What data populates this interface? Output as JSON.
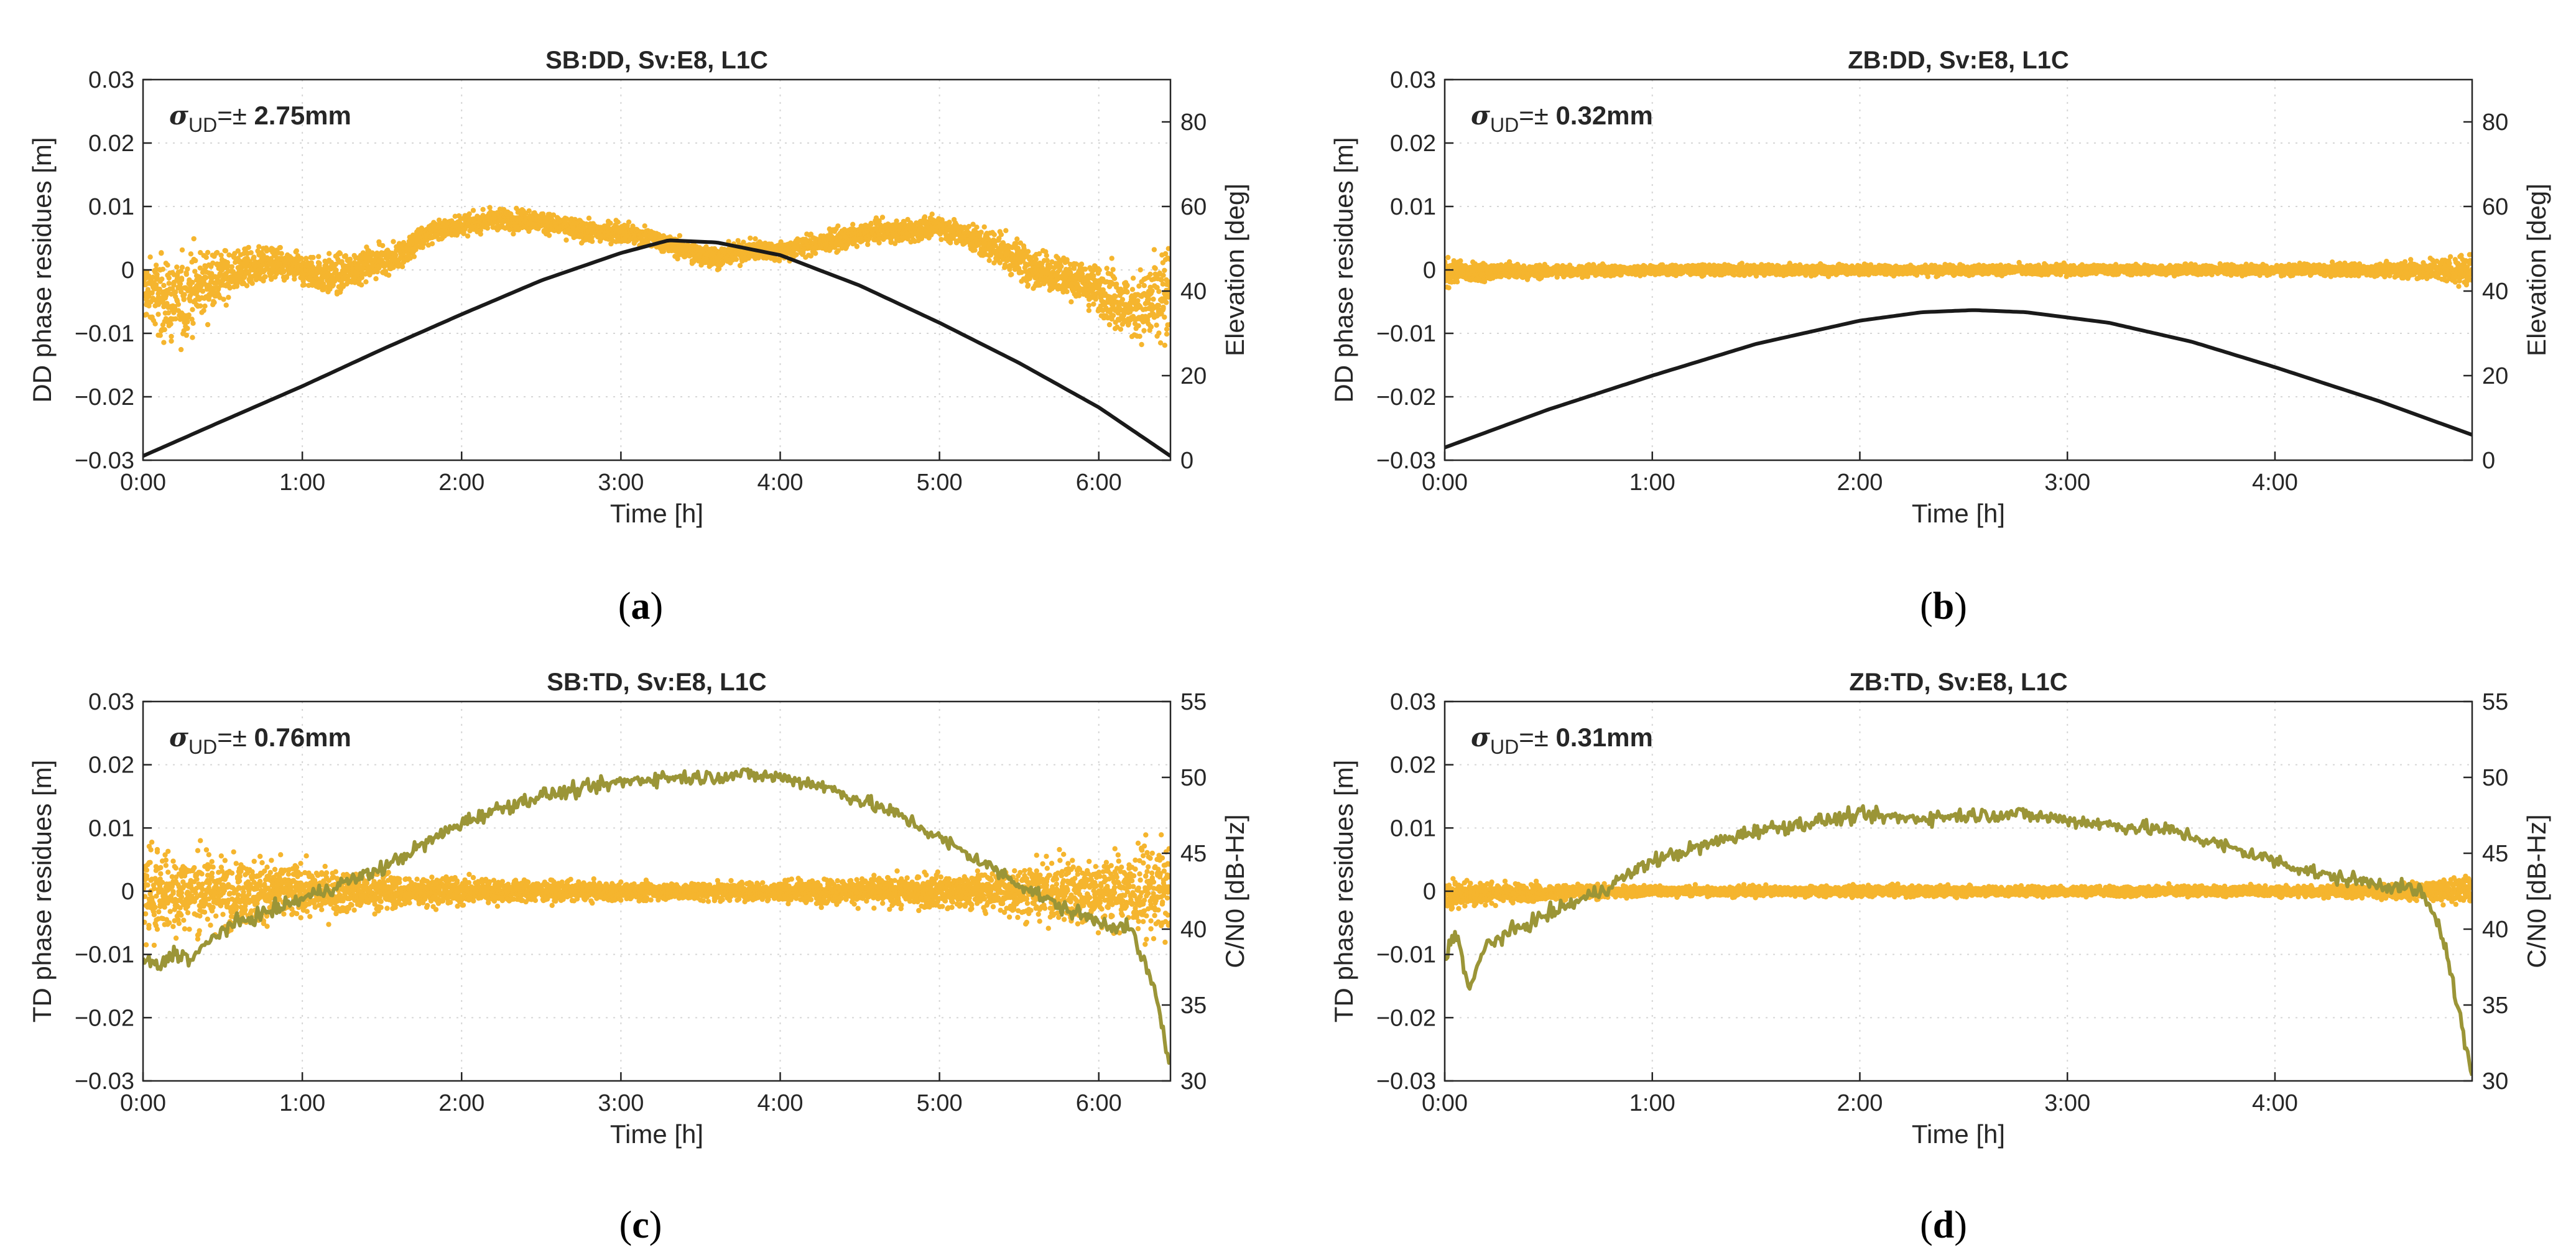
{
  "figure": {
    "colors": {
      "residues": "#F5B52E",
      "elevation": "#1a1a1a",
      "cn0": "#9B9537"
    },
    "panels": [
      {
        "id": "a",
        "title": "SB:DD, Sv:E8, L1C",
        "caption_letter": "a",
        "stat_sub": "UD",
        "stat_value": "2.75mm",
        "ylabel_left": "DD phase residues [m]",
        "ylabel_right": "Elevation [deg]",
        "xlabel": "Time [h]",
        "x_ticks": [
          "0:00",
          "1:00",
          "2:00",
          "3:00",
          "4:00",
          "5:00",
          "6:00"
        ],
        "y_ticks_left": [
          "−0.03",
          "−0.02",
          "−0.01",
          "0",
          "0.01",
          "0.02",
          "0.03"
        ],
        "y_ticks_right": [
          "0",
          "20",
          "40",
          "60",
          "80"
        ]
      },
      {
        "id": "b",
        "title": "ZB:DD, Sv:E8, L1C",
        "caption_letter": "b",
        "stat_sub": "UD",
        "stat_value": "0.32mm",
        "ylabel_left": "DD phase residues [m]",
        "ylabel_right": "Elevation [deg]",
        "xlabel": "Time [h]",
        "x_ticks": [
          "0:00",
          "1:00",
          "2:00",
          "3:00",
          "4:00"
        ],
        "y_ticks_left": [
          "−0.03",
          "−0.02",
          "−0.01",
          "0",
          "0.01",
          "0.02",
          "0.03"
        ],
        "y_ticks_right": [
          "0",
          "20",
          "40",
          "60",
          "80"
        ]
      },
      {
        "id": "c",
        "title": "SB:TD, Sv:E8, L1C",
        "caption_letter": "c",
        "stat_sub": "UD",
        "stat_value": "0.76mm",
        "ylabel_left": "TD phase residues [m]",
        "ylabel_right": "C/N0 [dB-Hz]",
        "xlabel": "Time [h]",
        "x_ticks": [
          "0:00",
          "1:00",
          "2:00",
          "3:00",
          "4:00",
          "5:00",
          "6:00"
        ],
        "y_ticks_left": [
          "−0.03",
          "−0.02",
          "−0.01",
          "0",
          "0.01",
          "0.02",
          "0.03"
        ],
        "y_ticks_right": [
          "30",
          "35",
          "40",
          "45",
          "50",
          "55"
        ]
      },
      {
        "id": "d",
        "title": "ZB:TD, Sv:E8, L1C",
        "caption_letter": "d",
        "stat_sub": "UD",
        "stat_value": "0.31mm",
        "ylabel_left": "TD phase residues [m]",
        "ylabel_right": "C/N0 [dB-Hz]",
        "xlabel": "Time [h]",
        "x_ticks": [
          "0:00",
          "1:00",
          "2:00",
          "3:00",
          "4:00"
        ],
        "y_ticks_left": [
          "−0.03",
          "−0.02",
          "−0.01",
          "0",
          "0.01",
          "0.02",
          "0.03"
        ],
        "y_ticks_right": [
          "30",
          "35",
          "40",
          "45",
          "50",
          "55"
        ]
      }
    ]
  },
  "chart_data": [
    {
      "type": "scatter",
      "title": "SB:DD, Sv:E8, L1C",
      "xlabel": "Time [h]",
      "ylabel": "DD phase residues [m]",
      "ylabel_right": "Elevation [deg]",
      "xlim": [
        0,
        6.45
      ],
      "ylim": [
        -0.03,
        0.03
      ],
      "ylim_right": [
        0,
        90
      ],
      "grid": true,
      "annotation": "σUD=± 2.75mm",
      "series": [
        {
          "kind": "scatter",
          "axis": "left",
          "color": "#F5B52E",
          "x": [
            0.0,
            0.2,
            0.4,
            0.6,
            0.8,
            1.0,
            1.2,
            1.4,
            1.6,
            1.8,
            2.0,
            2.2,
            2.4,
            2.6,
            2.8,
            3.0,
            3.2,
            3.4,
            3.6,
            3.8,
            4.0,
            4.2,
            4.4,
            4.6,
            4.8,
            5.0,
            5.2,
            5.4,
            5.6,
            5.8,
            6.0,
            6.2,
            6.4
          ],
          "center": [
            -0.003,
            -0.005,
            -0.002,
            0.0,
            0.001,
            0.0,
            -0.001,
            0.001,
            0.002,
            0.006,
            0.007,
            0.008,
            0.008,
            0.007,
            0.006,
            0.006,
            0.005,
            0.003,
            0.002,
            0.003,
            0.003,
            0.004,
            0.005,
            0.006,
            0.006,
            0.007,
            0.005,
            0.003,
            0.0,
            -0.001,
            -0.003,
            -0.006,
            -0.005
          ],
          "spread": [
            0.006,
            0.009,
            0.006,
            0.004,
            0.003,
            0.003,
            0.004,
            0.003,
            0.003,
            0.002,
            0.002,
            0.002,
            0.002,
            0.002,
            0.002,
            0.002,
            0.002,
            0.002,
            0.002,
            0.002,
            0.002,
            0.002,
            0.002,
            0.002,
            0.002,
            0.002,
            0.003,
            0.004,
            0.004,
            0.004,
            0.005,
            0.006,
            0.01
          ]
        },
        {
          "kind": "line",
          "axis": "right",
          "color": "#1a1a1a",
          "x": [
            0.0,
            0.5,
            1.0,
            1.5,
            2.0,
            2.5,
            3.0,
            3.3,
            3.6,
            4.0,
            4.5,
            5.0,
            5.5,
            6.0,
            6.45
          ],
          "y": [
            1,
            9.3,
            17.5,
            26.2,
            34.5,
            42.5,
            49,
            52,
            51.5,
            48.5,
            41.3,
            32.5,
            23,
            12.5,
            1
          ]
        }
      ]
    },
    {
      "type": "scatter",
      "title": "ZB:DD, Sv:E8, L1C",
      "xlabel": "Time [h]",
      "ylabel": "DD phase residues [m]",
      "ylabel_right": "Elevation [deg]",
      "xlim": [
        0,
        4.95
      ],
      "ylim": [
        -0.03,
        0.03
      ],
      "ylim_right": [
        0,
        90
      ],
      "grid": true,
      "annotation": "σUD=± 0.32mm",
      "series": [
        {
          "kind": "scatter",
          "axis": "left",
          "color": "#F5B52E",
          "x": [
            0.0,
            0.25,
            0.5,
            0.75,
            1.0,
            1.25,
            1.5,
            1.75,
            2.0,
            2.25,
            2.5,
            2.75,
            3.0,
            3.25,
            3.5,
            3.75,
            4.0,
            4.25,
            4.5,
            4.75,
            4.95
          ],
          "center": [
            -0.0005,
            -0.0003,
            -0.0002,
            -0.0001,
            0.0,
            0.0,
            0.0,
            0.0,
            0.0,
            0.0,
            0.0,
            0.0,
            0.0,
            0.0,
            0.0,
            0.0,
            0.0,
            0.0,
            0.0,
            0.0,
            0.0
          ],
          "spread": [
            0.0025,
            0.0015,
            0.0012,
            0.0011,
            0.001,
            0.001,
            0.001,
            0.001,
            0.001,
            0.001,
            0.001,
            0.001,
            0.001,
            0.001,
            0.001,
            0.001,
            0.001,
            0.0012,
            0.0013,
            0.0018,
            0.0035
          ]
        },
        {
          "kind": "line",
          "axis": "right",
          "color": "#1a1a1a",
          "x": [
            0.0,
            0.5,
            1.0,
            1.5,
            2.0,
            2.3,
            2.55,
            2.8,
            3.2,
            3.6,
            4.0,
            4.5,
            4.95
          ],
          "y": [
            3,
            12,
            20,
            27.5,
            33,
            35,
            35.5,
            35,
            32.5,
            28,
            22,
            14,
            6
          ]
        }
      ]
    },
    {
      "type": "scatter",
      "title": "SB:TD, Sv:E8, L1C",
      "xlabel": "Time [h]",
      "ylabel": "TD phase residues [m]",
      "ylabel_right": "C/N0 [dB-Hz]",
      "xlim": [
        0,
        6.45
      ],
      "ylim": [
        -0.03,
        0.03
      ],
      "ylim_right": [
        30,
        55
      ],
      "grid": true,
      "annotation": "σUD=± 0.76mm",
      "series": [
        {
          "kind": "scatter",
          "axis": "left",
          "color": "#F5B52E",
          "x": [
            0.0,
            0.25,
            0.5,
            0.75,
            1.0,
            1.25,
            1.5,
            1.75,
            2.0,
            2.25,
            2.5,
            2.75,
            3.0,
            3.25,
            3.5,
            3.75,
            4.0,
            4.25,
            4.5,
            4.75,
            5.0,
            5.25,
            5.5,
            5.75,
            6.0,
            6.25,
            6.45
          ],
          "center": [
            0.0,
            0.0,
            0.0,
            0.0,
            0.0,
            0.0,
            0.0,
            0.0,
            0.0,
            0.0,
            0.0,
            0.0,
            0.0,
            0.0,
            0.0,
            0.0,
            0.0,
            0.0,
            0.0,
            0.0,
            0.0,
            0.0,
            0.0,
            0.0,
            0.0,
            0.0,
            0.0
          ],
          "spread": [
            0.009,
            0.008,
            0.007,
            0.006,
            0.005,
            0.004,
            0.0035,
            0.003,
            0.0025,
            0.0022,
            0.002,
            0.0018,
            0.0017,
            0.0017,
            0.0017,
            0.0018,
            0.002,
            0.0022,
            0.0025,
            0.003,
            0.0035,
            0.004,
            0.005,
            0.006,
            0.007,
            0.008,
            0.01
          ]
        },
        {
          "kind": "line",
          "axis": "right",
          "color": "#9B9537",
          "x": [
            0.0,
            0.1,
            0.2,
            0.3,
            0.5,
            0.75,
            1.0,
            1.25,
            1.5,
            1.75,
            2.0,
            2.25,
            2.5,
            2.75,
            3.0,
            3.25,
            3.5,
            3.75,
            4.0,
            4.25,
            4.5,
            4.75,
            5.0,
            5.25,
            5.5,
            5.75,
            6.0,
            6.2,
            6.35,
            6.45
          ],
          "y": [
            38,
            37.5,
            38.5,
            38,
            40,
            41,
            42,
            43,
            44,
            45.5,
            47,
            48,
            48.8,
            49.2,
            49.7,
            50,
            50,
            50.2,
            50,
            49.5,
            48.5,
            47.5,
            46,
            44.5,
            43,
            41.5,
            40.5,
            40,
            36,
            31
          ]
        }
      ]
    },
    {
      "type": "scatter",
      "title": "ZB:TD, Sv:E8, L1C",
      "xlabel": "Time [h]",
      "ylabel": "TD phase residues [m]",
      "ylabel_right": "C/N0 [dB-Hz]",
      "xlim": [
        0,
        4.95
      ],
      "ylim": [
        -0.03,
        0.03
      ],
      "ylim_right": [
        30,
        55
      ],
      "grid": true,
      "annotation": "σUD=± 0.31mm",
      "series": [
        {
          "kind": "scatter",
          "axis": "left",
          "color": "#F5B52E",
          "x": [
            0.0,
            0.25,
            0.5,
            0.75,
            1.0,
            1.25,
            1.5,
            1.75,
            2.0,
            2.25,
            2.5,
            2.75,
            3.0,
            3.25,
            3.5,
            3.75,
            4.0,
            4.25,
            4.5,
            4.75,
            4.95
          ],
          "center": [
            -0.0005,
            -0.0003,
            -0.0002,
            -0.0001,
            0.0,
            0.0,
            0.0,
            0.0,
            0.0,
            0.0,
            0.0,
            0.0,
            0.0,
            0.0,
            0.0,
            0.0,
            0.0,
            0.0,
            0.0,
            0.0,
            0.0
          ],
          "spread": [
            0.003,
            0.002,
            0.0015,
            0.0012,
            0.001,
            0.001,
            0.001,
            0.001,
            0.001,
            0.001,
            0.001,
            0.001,
            0.001,
            0.001,
            0.001,
            0.001,
            0.001,
            0.0012,
            0.0015,
            0.0018,
            0.003
          ]
        },
        {
          "kind": "line",
          "axis": "right",
          "color": "#9B9537",
          "x": [
            0.0,
            0.05,
            0.12,
            0.2,
            0.35,
            0.5,
            0.75,
            1.0,
            1.25,
            1.5,
            1.75,
            2.0,
            2.25,
            2.5,
            2.75,
            3.0,
            3.25,
            3.5,
            3.75,
            4.0,
            4.25,
            4.5,
            4.7,
            4.8,
            4.88,
            4.95
          ],
          "y": [
            38,
            40,
            36,
            39,
            40,
            41,
            42.5,
            44.5,
            45.5,
            46.5,
            47,
            47.5,
            47.3,
            47.5,
            47.6,
            47.2,
            46.8,
            46.5,
            45.5,
            44.5,
            43.5,
            43,
            42.5,
            40,
            35,
            30
          ]
        }
      ]
    }
  ]
}
